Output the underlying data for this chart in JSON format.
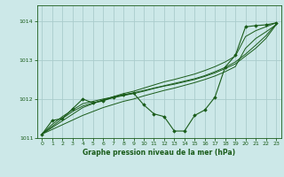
{
  "xlabel": "Graphe pression niveau de la mer (hPa)",
  "bg_color": "#cce8e8",
  "grid_color": "#aacccc",
  "line_color": "#1a5c1a",
  "x": [
    0,
    1,
    2,
    3,
    4,
    5,
    6,
    7,
    8,
    9,
    10,
    11,
    12,
    13,
    14,
    15,
    16,
    17,
    18,
    19,
    20,
    21,
    22,
    23
  ],
  "series_main": [
    1011.1,
    1011.45,
    1011.5,
    1011.75,
    1012.0,
    1011.9,
    1011.95,
    1012.05,
    1012.1,
    1012.15,
    1011.85,
    1011.62,
    1011.55,
    1011.18,
    1011.18,
    1011.58,
    1011.72,
    1012.05,
    1012.82,
    1013.12,
    1013.85,
    1013.88,
    1013.9,
    1013.95
  ],
  "series_trend_upper": [
    1011.1,
    1011.27,
    1011.44,
    1011.61,
    1011.78,
    1011.88,
    1011.98,
    1012.06,
    1012.14,
    1012.2,
    1012.28,
    1012.36,
    1012.44,
    1012.5,
    1012.57,
    1012.64,
    1012.73,
    1012.83,
    1012.95,
    1013.1,
    1013.6,
    1013.75,
    1013.85,
    1013.95
  ],
  "series_trend_lower": [
    1011.1,
    1011.22,
    1011.34,
    1011.46,
    1011.58,
    1011.68,
    1011.78,
    1011.86,
    1011.94,
    1012.0,
    1012.08,
    1012.15,
    1012.22,
    1012.28,
    1012.35,
    1012.42,
    1012.5,
    1012.59,
    1012.7,
    1012.83,
    1013.3,
    1013.55,
    1013.72,
    1013.9
  ],
  "series_line3": [
    1011.1,
    1011.3,
    1011.5,
    1011.68,
    1011.82,
    1011.9,
    1011.97,
    1012.03,
    1012.09,
    1012.14,
    1012.2,
    1012.27,
    1012.33,
    1012.38,
    1012.44,
    1012.5,
    1012.58,
    1012.67,
    1012.78,
    1012.9,
    1013.1,
    1013.3,
    1013.55,
    1013.9
  ],
  "series_line4": [
    1011.1,
    1011.35,
    1011.55,
    1011.72,
    1011.88,
    1011.94,
    1012.0,
    1012.05,
    1012.11,
    1012.16,
    1012.22,
    1012.28,
    1012.34,
    1012.4,
    1012.46,
    1012.52,
    1012.6,
    1012.7,
    1012.81,
    1012.95,
    1013.15,
    1013.38,
    1013.62,
    1013.92
  ],
  "ylim_min": 1011.0,
  "ylim_max": 1014.4,
  "yticks": [
    1011,
    1012,
    1013,
    1014
  ],
  "xticks": [
    0,
    1,
    2,
    3,
    4,
    5,
    6,
    7,
    8,
    9,
    10,
    11,
    12,
    13,
    14,
    15,
    16,
    17,
    18,
    19,
    20,
    21,
    22,
    23
  ]
}
